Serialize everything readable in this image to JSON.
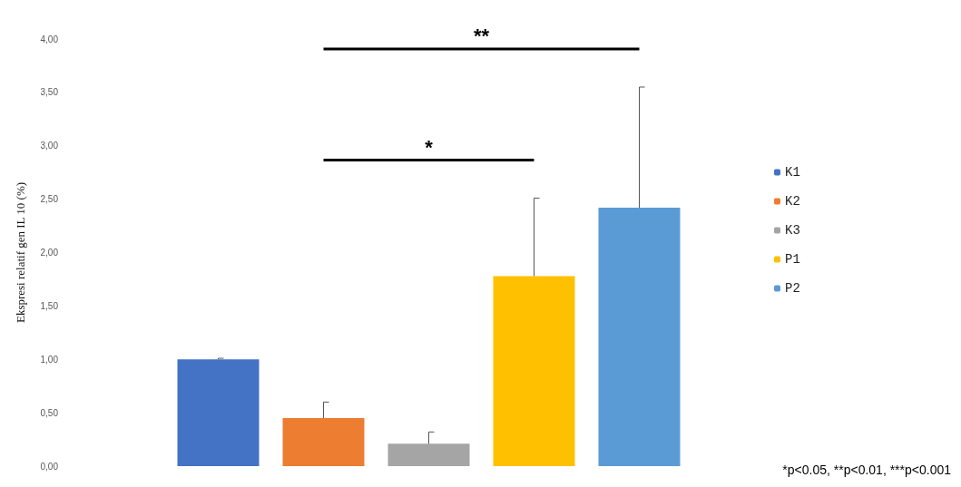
{
  "chart_data": {
    "type": "bar",
    "categories": [
      null
    ],
    "series": [
      {
        "name": "K1",
        "color": "#4472c4",
        "values": [
          1.0
        ],
        "errors": [
          [
            1.0,
            1.01
          ]
        ]
      },
      {
        "name": "K2",
        "color": "#ed7d31",
        "values": [
          0.45
        ],
        "errors": [
          [
            0.45,
            0.6
          ]
        ]
      },
      {
        "name": "K3",
        "color": "#a5a5a5",
        "values": [
          0.21
        ],
        "errors": [
          [
            0.21,
            0.32
          ]
        ]
      },
      {
        "name": "P1",
        "color": "#ffc000",
        "values": [
          1.78
        ],
        "errors": [
          [
            1.78,
            2.51
          ]
        ]
      },
      {
        "name": "P2",
        "color": "#5b9bd5",
        "values": [
          2.42
        ],
        "errors": [
          [
            2.42,
            3.55
          ]
        ]
      }
    ],
    "ylabel": "Ekspresi relatif gen IL 10 (%)",
    "ylim": [
      0,
      4
    ],
    "yticks": [
      {
        "value": 0,
        "label": "0,00"
      },
      {
        "value": 0.5,
        "label": "0,50"
      },
      {
        "value": 1,
        "label": "1,00"
      },
      {
        "value": 1.5,
        "label": "1,50"
      },
      {
        "value": 2,
        "label": "2,00"
      },
      {
        "value": 2.5,
        "label": "2,50"
      },
      {
        "value": 3,
        "label": "3,00"
      },
      {
        "value": 3.5,
        "label": "3,50"
      },
      {
        "value": 4,
        "label": "4,00"
      }
    ],
    "annotations": [
      "**",
      "*",
      "*p<0.05, **p<0.01, ***p<0.001"
    ],
    "legend": "right",
    "grid": false
  }
}
